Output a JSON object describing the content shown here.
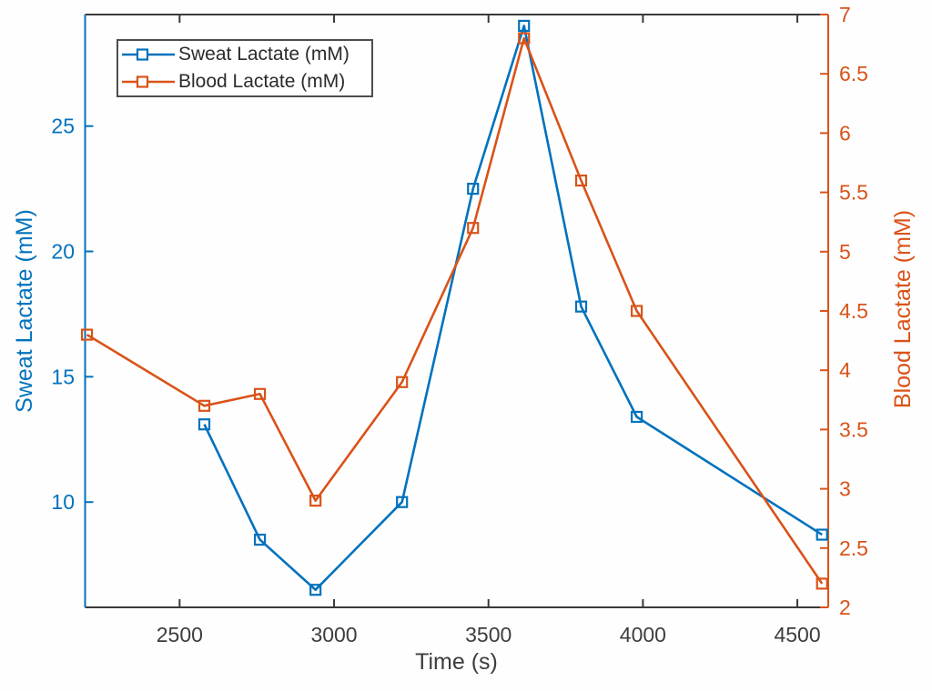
{
  "figure": {
    "background": "#ffffff"
  },
  "colors": {
    "sweat_blue": "#0072BD",
    "blood_orange": "#D95319",
    "axis_dark": "#3a3a3a",
    "tick_text_gray": "#3d3d3d",
    "legend_border_gray": "#4d4d4d"
  },
  "chart_data": {
    "type": "line",
    "title": "",
    "xlabel": "Time (s)",
    "grid": false,
    "marker": "square",
    "legend": {
      "position": "northwest",
      "entries": [
        "Sweat Lactate (mM)",
        "Blood Lactate (mM)"
      ]
    },
    "x_axis": {
      "ticks": [
        2500,
        3000,
        3500,
        4000,
        4500
      ],
      "range": [
        2194,
        4600
      ]
    },
    "left_axis": {
      "label": "Sweat Lactate (mM)",
      "color": "#0072BD",
      "ticks": [
        10,
        15,
        20,
        25
      ],
      "range": [
        5.8,
        29.45
      ]
    },
    "right_axis": {
      "label": "Blood Lactate (mM)",
      "color": "#D95319",
      "ticks": [
        2,
        2.5,
        3,
        3.5,
        4,
        4.5,
        5,
        5.5,
        6,
        6.5,
        7
      ],
      "range": [
        2,
        7
      ]
    },
    "series": [
      {
        "name": "Sweat Lactate (mM)",
        "axis": "left",
        "color": "#0072BD",
        "x": [
          2580,
          2760,
          2940,
          3220,
          3450,
          3615,
          3800,
          3980,
          4580
        ],
        "y": [
          13.1,
          8.5,
          6.5,
          10.0,
          22.5,
          29.0,
          17.8,
          13.4,
          8.7
        ]
      },
      {
        "name": "Blood Lactate (mM)",
        "axis": "right",
        "color": "#D95319",
        "x": [
          2200,
          2580,
          2760,
          2940,
          3220,
          3450,
          3615,
          3800,
          3980,
          4580
        ],
        "y": [
          4.3,
          3.7,
          3.8,
          2.9,
          3.9,
          5.2,
          6.8,
          5.6,
          4.5,
          2.2
        ]
      }
    ]
  }
}
